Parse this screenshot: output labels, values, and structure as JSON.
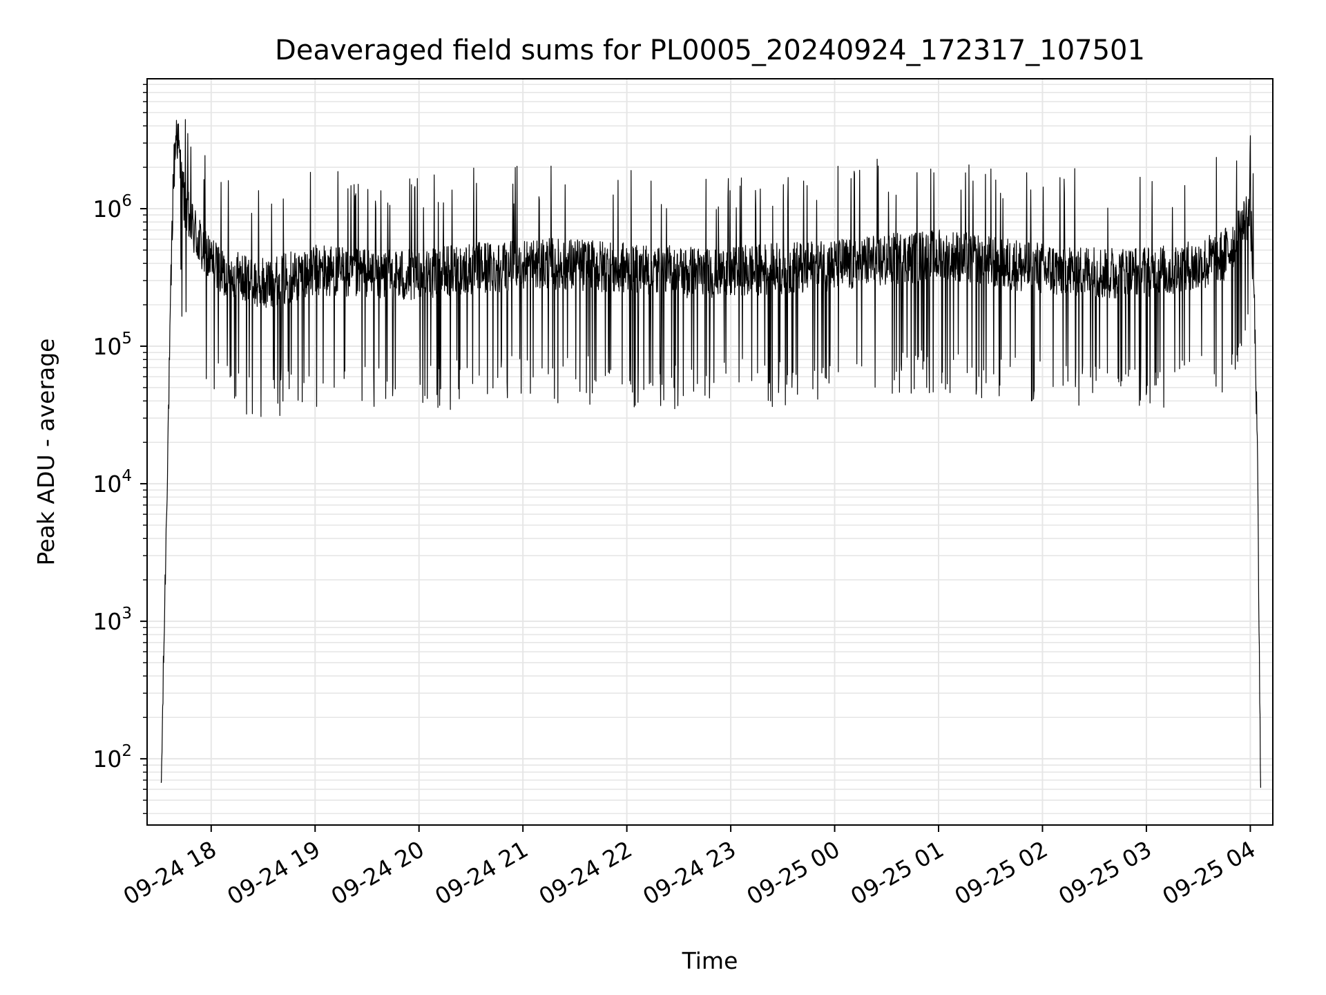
{
  "chart_data": {
    "type": "line",
    "title": "Deaveraged field sums for PL0005_20240924_172317_107501",
    "xlabel": "Time",
    "ylabel": "Peak ADU - average",
    "y_scale": "log",
    "ylim": [
      33,
      8800000
    ],
    "xlim": [
      "2024-09-24 17:23",
      "2024-09-25 04:13"
    ],
    "grid": true,
    "line_color": "#000000",
    "grid_color": "#e6e6e6",
    "x_ticks": [
      {
        "value": "2024-09-24 18:00",
        "label": "09-24 18"
      },
      {
        "value": "2024-09-24 19:00",
        "label": "09-24 19"
      },
      {
        "value": "2024-09-24 20:00",
        "label": "09-24 20"
      },
      {
        "value": "2024-09-24 21:00",
        "label": "09-24 21"
      },
      {
        "value": "2024-09-24 22:00",
        "label": "09-24 22"
      },
      {
        "value": "2024-09-24 23:00",
        "label": "09-24 23"
      },
      {
        "value": "2024-09-25 00:00",
        "label": "09-25 00"
      },
      {
        "value": "2024-09-25 01:00",
        "label": "09-25 01"
      },
      {
        "value": "2024-09-25 02:00",
        "label": "09-25 02"
      },
      {
        "value": "2024-09-25 03:00",
        "label": "09-25 03"
      },
      {
        "value": "2024-09-25 04:00",
        "label": "09-25 04"
      }
    ],
    "y_ticks": [
      {
        "value": 100,
        "base": "10",
        "exp": "2"
      },
      {
        "value": 1000,
        "base": "10",
        "exp": "3"
      },
      {
        "value": 10000,
        "base": "10",
        "exp": "4"
      },
      {
        "value": 100000,
        "base": "10",
        "exp": "5"
      },
      {
        "value": 1000000,
        "base": "10",
        "exp": "6"
      }
    ],
    "series": [
      {
        "x": [
          "2024-09-24 17:31",
          "2024-09-24 17:33",
          "2024-09-24 17:35",
          "2024-09-24 17:38",
          "2024-09-24 17:40",
          "2024-09-24 17:43",
          "2024-09-24 17:46",
          "2024-09-24 17:50",
          "2024-09-24 17:55",
          "2024-09-24 18:00",
          "2024-09-24 18:05",
          "2024-09-24 18:10",
          "2024-09-24 18:20",
          "2024-09-24 18:30",
          "2024-09-24 18:40",
          "2024-09-24 18:50",
          "2024-09-24 19:00",
          "2024-09-24 19:15",
          "2024-09-24 19:30",
          "2024-09-24 19:45",
          "2024-09-24 20:00",
          "2024-09-24 20:15",
          "2024-09-24 20:30",
          "2024-09-24 20:45",
          "2024-09-24 21:00",
          "2024-09-24 21:15",
          "2024-09-24 21:30",
          "2024-09-24 21:45",
          "2024-09-24 22:00",
          "2024-09-24 22:15",
          "2024-09-24 22:30",
          "2024-09-24 22:45",
          "2024-09-24 23:00",
          "2024-09-24 23:15",
          "2024-09-24 23:30",
          "2024-09-24 23:45",
          "2024-09-25 00:00",
          "2024-09-25 00:15",
          "2024-09-25 00:30",
          "2024-09-25 00:45",
          "2024-09-25 01:00",
          "2024-09-25 01:15",
          "2024-09-25 01:30",
          "2024-09-25 01:45",
          "2024-09-25 02:00",
          "2024-09-25 02:15",
          "2024-09-25 02:30",
          "2024-09-25 02:45",
          "2024-09-25 03:00",
          "2024-09-25 03:15",
          "2024-09-25 03:30",
          "2024-09-25 03:45",
          "2024-09-25 03:52",
          "2024-09-25 03:57",
          "2024-09-25 04:00",
          "2024-09-25 04:02",
          "2024-09-25 04:04",
          "2024-09-25 04:05",
          "2024-09-25 04:06"
        ],
        "y": [
          50,
          1000,
          20000,
          1500000,
          4000000,
          1500000,
          900000,
          700000,
          500000,
          400000,
          350000,
          320000,
          300000,
          280000,
          300000,
          320000,
          350000,
          340000,
          330000,
          320000,
          330000,
          340000,
          360000,
          370000,
          380000,
          390000,
          380000,
          370000,
          360000,
          350000,
          340000,
          330000,
          340000,
          350000,
          360000,
          370000,
          380000,
          400000,
          420000,
          430000,
          450000,
          430000,
          400000,
          380000,
          360000,
          350000,
          340000,
          330000,
          340000,
          350000,
          380000,
          450000,
          600000,
          800000,
          900000,
          300000,
          20000,
          1000,
          50
        ]
      }
    ]
  }
}
